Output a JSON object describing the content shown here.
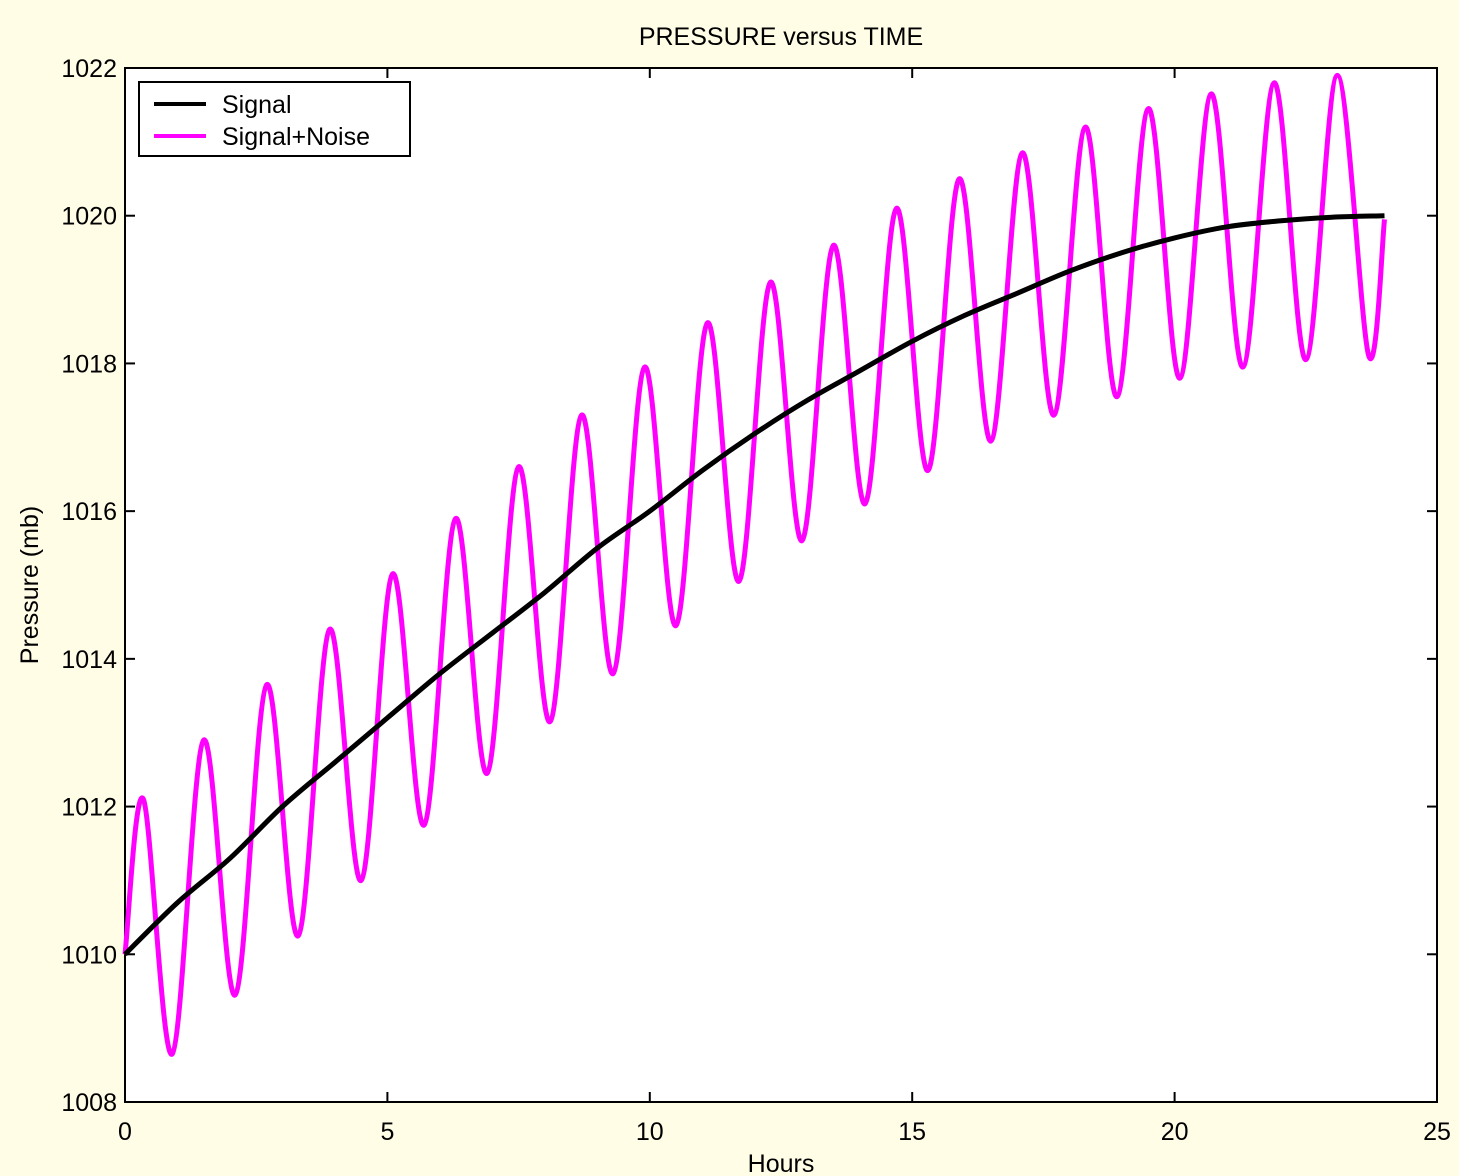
{
  "chart_data": {
    "type": "line",
    "title": "PRESSURE versus TIME",
    "xlabel": "Hours",
    "ylabel": "Pressure (mb)",
    "xlim": [
      0,
      25
    ],
    "ylim": [
      1008,
      1022
    ],
    "xticks": [
      "0",
      "5",
      "10",
      "15",
      "20",
      "25"
    ],
    "yticks": [
      "1008",
      "1010",
      "1012",
      "1014",
      "1016",
      "1018",
      "1020",
      "1022"
    ],
    "grid": false,
    "legend_position": "top-left",
    "series": [
      {
        "name": "Signal",
        "color": "#000000",
        "x": [
          0,
          1,
          2,
          3,
          4,
          5,
          6,
          7,
          8,
          9,
          10,
          11,
          12,
          13,
          14,
          15,
          16,
          17,
          18,
          19,
          20,
          21,
          22,
          23,
          24
        ],
        "y": [
          1010.0,
          1010.7,
          1011.3,
          1012.0,
          1012.6,
          1013.2,
          1013.8,
          1014.35,
          1014.9,
          1015.5,
          1016.0,
          1016.55,
          1017.05,
          1017.5,
          1017.9,
          1018.3,
          1018.65,
          1018.95,
          1019.25,
          1019.5,
          1019.7,
          1019.85,
          1019.93,
          1019.98,
          1020.0
        ]
      },
      {
        "name": "Signal+Noise",
        "color": "#ff00ff",
        "x": [
          0,
          0.35,
          0.9,
          1.5,
          2.1,
          2.7,
          3.3,
          3.9,
          4.5,
          5.1,
          5.7,
          6.3,
          6.9,
          7.5,
          8.1,
          8.7,
          9.3,
          9.9,
          10.5,
          11.1,
          11.7,
          12.3,
          12.9,
          13.5,
          14.1,
          14.7,
          15.3,
          15.9,
          16.5,
          17.1,
          17.7,
          18.3,
          18.9,
          19.5,
          20.1,
          20.7,
          21.3,
          21.9,
          22.5,
          23.1,
          23.7,
          24.0
        ],
        "y": [
          1010.0,
          1012.1,
          1008.65,
          1012.9,
          1009.45,
          1013.65,
          1010.25,
          1014.4,
          1011.0,
          1015.15,
          1011.75,
          1015.9,
          1012.45,
          1016.6,
          1013.15,
          1017.3,
          1013.8,
          1017.95,
          1014.45,
          1018.55,
          1015.05,
          1019.1,
          1015.6,
          1019.6,
          1016.1,
          1020.1,
          1016.55,
          1020.5,
          1016.95,
          1020.85,
          1017.3,
          1021.2,
          1017.55,
          1021.45,
          1017.8,
          1021.65,
          1017.95,
          1021.8,
          1018.05,
          1021.9,
          1018.1,
          1019.95
        ]
      }
    ]
  }
}
